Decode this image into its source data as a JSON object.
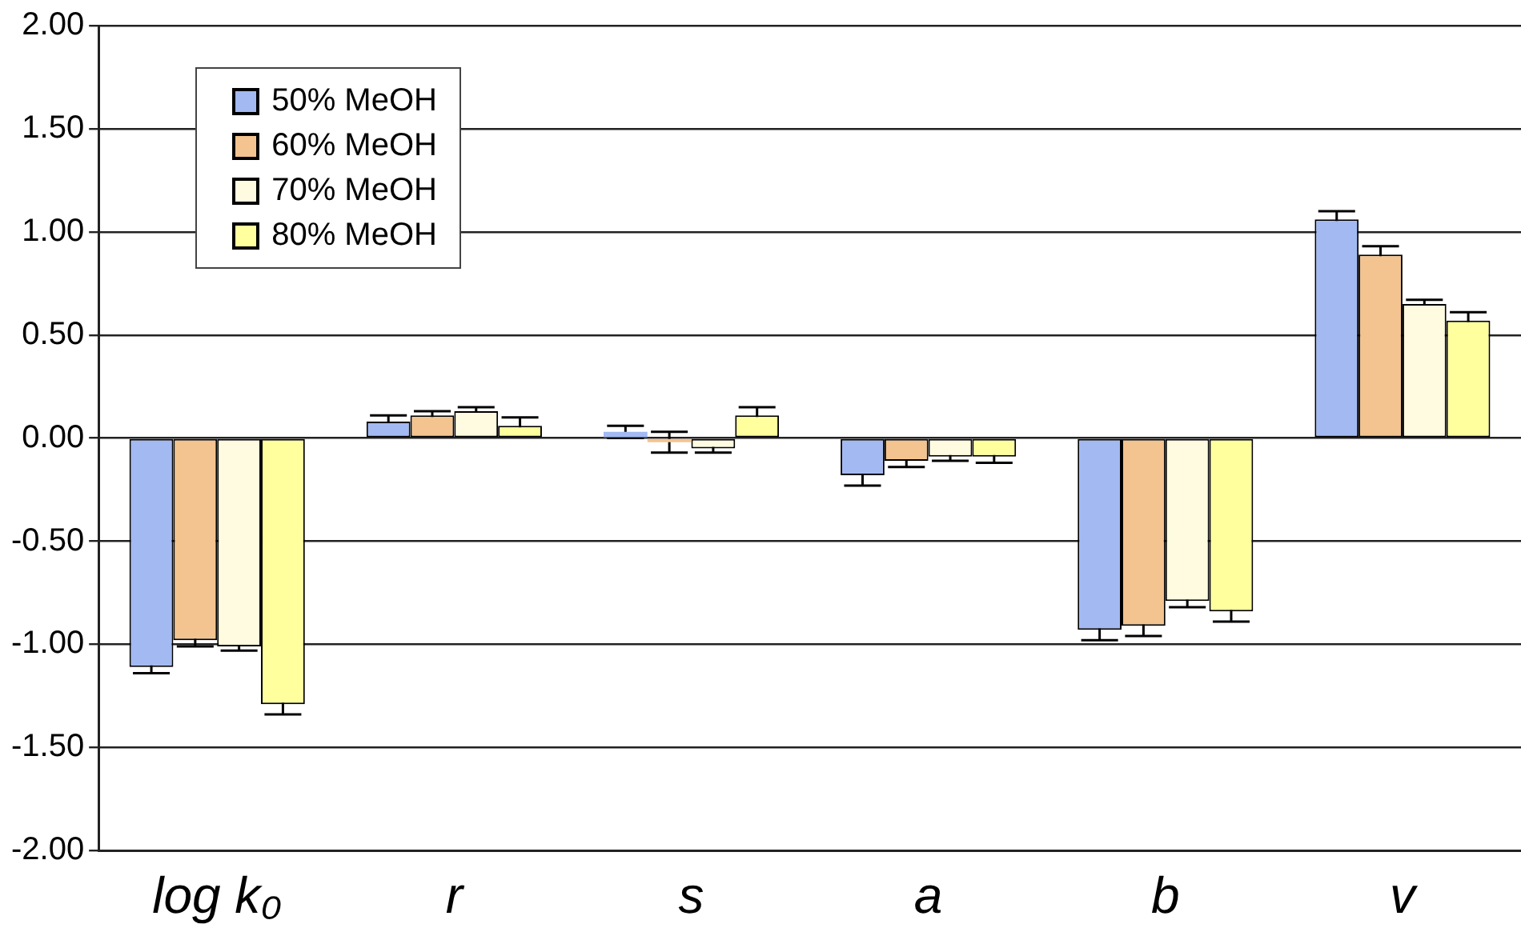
{
  "chart_data": {
    "type": "bar",
    "categories": [
      "log k₀",
      "r",
      "s",
      "a",
      "b",
      "v"
    ],
    "series": [
      {
        "name": "50% MeOH",
        "color": "#a3b9f2",
        "values": [
          -1.11,
          0.08,
          0.03,
          -0.18,
          -0.93,
          1.06
        ],
        "errors": [
          0.03,
          0.03,
          0.03,
          0.05,
          0.05,
          0.04
        ]
      },
      {
        "name": "60% MeOH",
        "color": "#f3c48f",
        "values": [
          -0.98,
          0.11,
          -0.02,
          -0.11,
          -0.91,
          0.89
        ],
        "errors": [
          0.03,
          0.02,
          0.05,
          0.03,
          0.05,
          0.04
        ]
      },
      {
        "name": "70% MeOH",
        "color": "#fffbe0",
        "values": [
          -1.01,
          0.13,
          -0.05,
          -0.09,
          -0.79,
          0.65
        ],
        "errors": [
          0.02,
          0.02,
          0.02,
          0.02,
          0.03,
          0.02
        ]
      },
      {
        "name": "80% MeOH",
        "color": "#ffff9e",
        "values": [
          -1.29,
          0.06,
          0.11,
          -0.09,
          -0.84,
          0.57
        ],
        "errors": [
          0.05,
          0.04,
          0.04,
          0.03,
          0.05,
          0.04
        ]
      }
    ],
    "ylim": [
      -2,
      2
    ],
    "yticks": [
      {
        "value": -2,
        "label": "-2.00"
      },
      {
        "value": -1.5,
        "label": "-1.50"
      },
      {
        "value": -1,
        "label": "-1.00"
      },
      {
        "value": -0.5,
        "label": "-0.50"
      },
      {
        "value": 0,
        "label": "0.00"
      },
      {
        "value": 0.5,
        "label": "0.50"
      },
      {
        "value": 1,
        "label": "1.00"
      },
      {
        "value": 1.5,
        "label": "1.50"
      },
      {
        "value": 2,
        "label": "2.00"
      }
    ],
    "grid": "y",
    "legend": "top left"
  }
}
